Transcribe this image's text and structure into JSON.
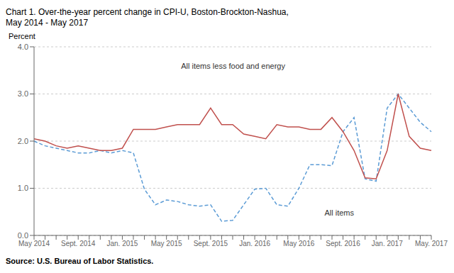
{
  "chart_data": {
    "type": "line",
    "title": "Chart 1.  Over-the-year percent change in CPI-U, Boston-Brockton-Nashua,",
    "subtitle": "May 2014 - May 2017",
    "y_label": "Percent",
    "source": "Source: U.S. Bureau of Labor Statistics.",
    "categories": [
      "May 2014",
      null,
      null,
      null,
      "Sept. 2014",
      null,
      null,
      null,
      "Jan. 2015",
      null,
      null,
      null,
      "May 2015",
      null,
      null,
      null,
      "Sept. 2015",
      null,
      null,
      null,
      "Jan. 2016",
      null,
      null,
      null,
      "May 2016",
      null,
      null,
      null,
      "Sept. 2016",
      null,
      null,
      null,
      "Jan. 2017",
      null,
      null,
      null,
      "May. 2017"
    ],
    "series": [
      {
        "name": "All items",
        "color": "#5B9BD5",
        "line_style": "dashed",
        "values": [
          2.0,
          1.9,
          1.85,
          1.8,
          1.75,
          1.75,
          1.8,
          1.75,
          1.8,
          1.75,
          0.98,
          0.65,
          0.75,
          0.72,
          0.65,
          0.62,
          0.65,
          0.3,
          0.32,
          0.65,
          0.98,
          1.0,
          0.65,
          0.62,
          1.0,
          1.5,
          1.5,
          1.48,
          2.2,
          2.5,
          1.2,
          1.15,
          2.7,
          3.0,
          2.7,
          2.4,
          2.2
        ]
      },
      {
        "name": "All items less food and energy",
        "color": "#C0504D",
        "line_style": "solid",
        "values": [
          2.05,
          2.0,
          1.9,
          1.85,
          1.9,
          1.85,
          1.8,
          1.8,
          1.85,
          2.25,
          2.25,
          2.25,
          2.3,
          2.35,
          2.35,
          2.35,
          2.7,
          2.35,
          2.35,
          2.15,
          2.1,
          2.05,
          2.35,
          2.3,
          2.3,
          2.25,
          2.25,
          2.5,
          2.2,
          1.8,
          1.22,
          1.2,
          1.8,
          3.0,
          2.1,
          1.85,
          1.8
        ]
      }
    ],
    "ylim": [
      0.0,
      4.0
    ],
    "yticks": [
      {
        "value": 0.0,
        "label": "0.0"
      },
      {
        "value": 1.0,
        "label": "1.0"
      },
      {
        "value": 2.0,
        "label": "2.0"
      },
      {
        "value": 3.0,
        "label": "3.0"
      },
      {
        "value": 4.0,
        "label": "4.0"
      }
    ],
    "grid": true
  }
}
